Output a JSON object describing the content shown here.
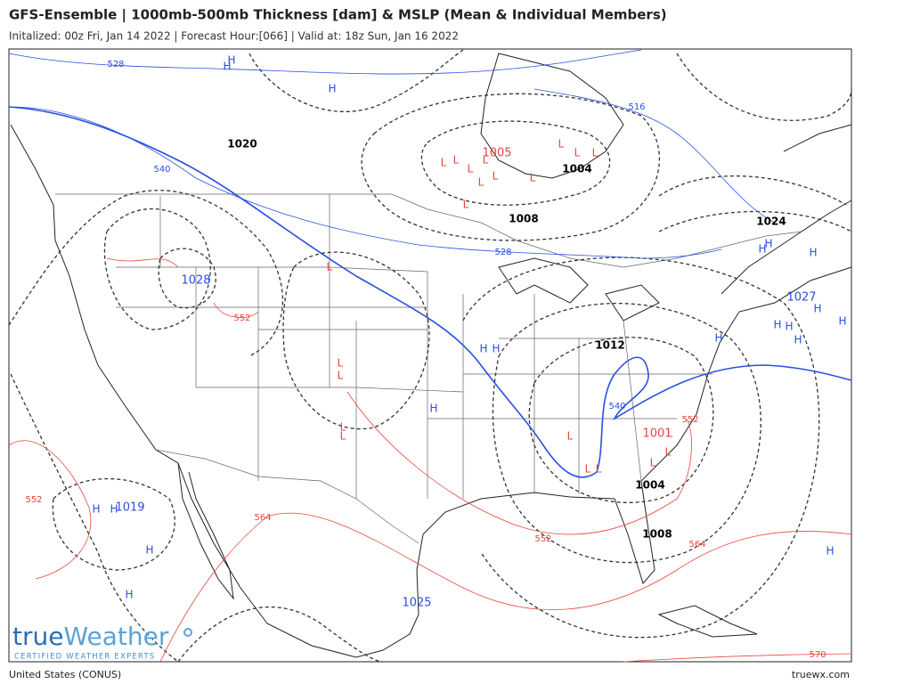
{
  "header": {
    "title": "GFS-Ensemble | 1000mb-500mb Thickness [dam] & MSLP (Mean & Individual Members)",
    "subtitle": "Initalized: 00z Fri, Jan 14 2022  |  Forecast Hour:[066]  |  Valid at: 18z Sun, Jan 16 2022"
  },
  "map": {
    "contour_labels": [
      "1020",
      "1004",
      "1008",
      "1024",
      "1012",
      "1004",
      "1008"
    ],
    "member_high_labels": [
      "1028",
      "1027",
      "1019",
      "1025"
    ],
    "member_low_labels": [
      "1005",
      "1001"
    ],
    "blue_thickness_labels": [
      "528",
      "516",
      "540",
      "528",
      "540"
    ],
    "red_thickness_labels": [
      "552",
      "552",
      "564",
      "552",
      "564",
      "552",
      "570"
    ],
    "high_markers": [
      "H",
      "H",
      "H",
      "H",
      "H",
      "H",
      "H",
      "H",
      "H",
      "H",
      "H",
      "H",
      "H",
      "H",
      "H",
      "H",
      "H",
      "H",
      "H",
      "H"
    ],
    "low_markers": [
      "L",
      "L",
      "L",
      "L",
      "L",
      "L",
      "L",
      "L",
      "L",
      "L",
      "L",
      "L",
      "L",
      "L",
      "L",
      "L",
      "L",
      "L",
      "L",
      "L",
      "L",
      "L"
    ]
  },
  "logo": {
    "name_part1": "true",
    "name_part2": "Weather",
    "tagline": "CERTIFIED WEATHER EXPERTS"
  },
  "footer": {
    "region": "United States (CONUS)",
    "site": "truewx.com"
  }
}
